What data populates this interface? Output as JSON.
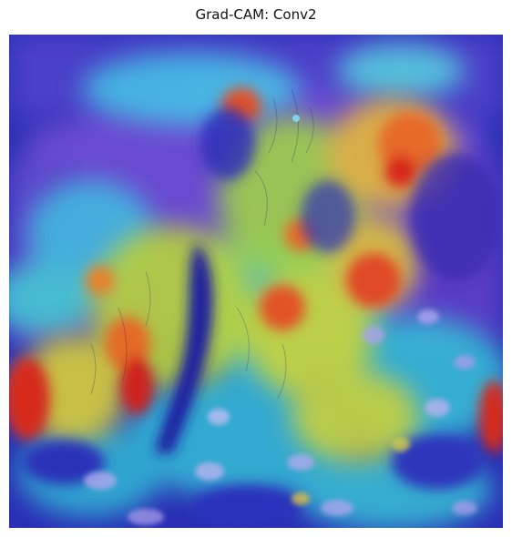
{
  "figure": {
    "title": "Grad-CAM: Conv2"
  },
  "image": {
    "description_kind": "Grad-CAM heatmap (jet colormap) overlaid on a photo of a shaggy dog sitting on a couch",
    "colormap": "jet",
    "colors": {
      "low": "#1f1fb0",
      "mid_low": "#27b8d6",
      "mid": "#34d27a",
      "mid_high": "#e8d43a",
      "high": "#d8261c"
    }
  }
}
